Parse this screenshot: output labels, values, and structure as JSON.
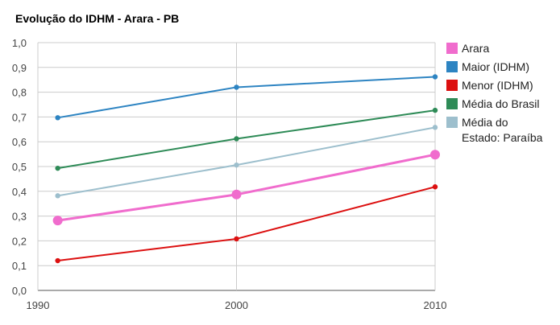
{
  "chart_data": {
    "type": "line",
    "title": "Evolução do IDHM - Arara - PB",
    "x": [
      1991,
      2000,
      2010
    ],
    "xticks": [
      1990,
      2000,
      2010
    ],
    "xlim": [
      1990,
      2010
    ],
    "ylim": [
      0,
      1
    ],
    "yticks": [
      "0,0",
      "0,1",
      "0,2",
      "0,3",
      "0,4",
      "0,5",
      "0,6",
      "0,7",
      "0,8",
      "0,9",
      "1,0"
    ],
    "grid": true,
    "legend_position": "right",
    "series": [
      {
        "name": "Arara",
        "color": "#f06ccd",
        "values": [
          0.282,
          0.387,
          0.548
        ],
        "highlight": true
      },
      {
        "name": "Maior (IDHM)",
        "color": "#2d84c2",
        "values": [
          0.697,
          0.82,
          0.862
        ]
      },
      {
        "name": "Menor (IDHM)",
        "color": "#dc1010",
        "values": [
          0.12,
          0.208,
          0.418
        ]
      },
      {
        "name": "Média do Brasil",
        "color": "#2e8b57",
        "values": [
          0.493,
          0.612,
          0.727
        ]
      },
      {
        "name": "Média do Estado: Paraíba",
        "legend_lines": [
          "Média do",
          "Estado: Paraíba"
        ],
        "color": "#9dbfcd",
        "values": [
          0.382,
          0.506,
          0.658
        ]
      }
    ]
  }
}
